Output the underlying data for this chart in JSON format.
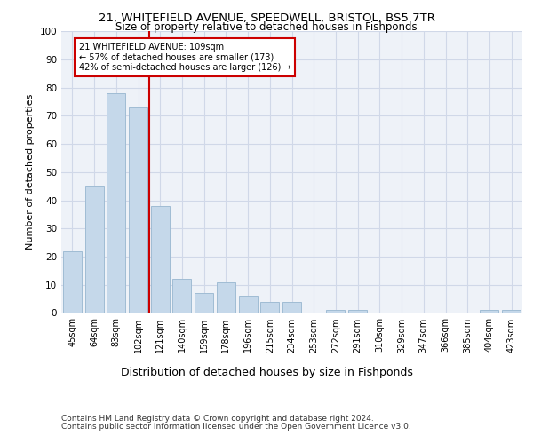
{
  "title1": "21, WHITEFIELD AVENUE, SPEEDWELL, BRISTOL, BS5 7TR",
  "title2": "Size of property relative to detached houses in Fishponds",
  "xlabel": "Distribution of detached houses by size in Fishponds",
  "ylabel": "Number of detached properties",
  "bin_labels": [
    "45sqm",
    "64sqm",
    "83sqm",
    "102sqm",
    "121sqm",
    "140sqm",
    "159sqm",
    "178sqm",
    "196sqm",
    "215sqm",
    "234sqm",
    "253sqm",
    "272sqm",
    "291sqm",
    "310sqm",
    "329sqm",
    "347sqm",
    "366sqm",
    "385sqm",
    "404sqm",
    "423sqm"
  ],
  "bar_values": [
    22,
    45,
    78,
    73,
    38,
    12,
    7,
    11,
    6,
    4,
    4,
    0,
    1,
    1,
    0,
    0,
    0,
    0,
    0,
    1,
    1
  ],
  "bar_color": "#c5d8ea",
  "bar_edge_color": "#a0bcd4",
  "grid_color": "#d0d8e8",
  "bg_color": "#eef2f8",
  "red_line_x": 3.5,
  "annotation_text": "21 WHITEFIELD AVENUE: 109sqm\n← 57% of detached houses are smaller (173)\n42% of semi-detached houses are larger (126) →",
  "annotation_box_color": "#ffffff",
  "annotation_box_edge": "#cc0000",
  "red_line_color": "#cc0000",
  "footer1": "Contains HM Land Registry data © Crown copyright and database right 2024.",
  "footer2": "Contains public sector information licensed under the Open Government Licence v3.0.",
  "ylim": [
    0,
    100
  ],
  "yticks": [
    0,
    10,
    20,
    30,
    40,
    50,
    60,
    70,
    80,
    90,
    100
  ]
}
